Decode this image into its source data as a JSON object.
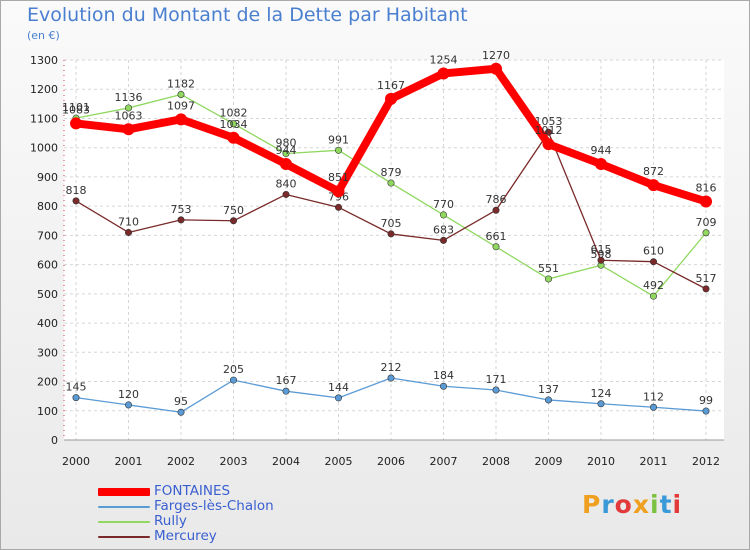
{
  "title": "Evolution du Montant de la Dette par Habitant",
  "unit_label": "(en €)",
  "logo": {
    "text": "Proxiti",
    "colors": [
      "#f0a020",
      "#3a9ad9",
      "#e23a3a",
      "#f0a020",
      "#7cc242",
      "#3a9ad9",
      "#e23a3a"
    ]
  },
  "chart_data": {
    "type": "line",
    "x": [
      "2000",
      "2001",
      "2002",
      "2003",
      "2004",
      "2005",
      "2006",
      "2007",
      "2008",
      "2009",
      "2010",
      "2011",
      "2012"
    ],
    "ylim": [
      0,
      1300
    ],
    "yticks": [
      0,
      100,
      200,
      300,
      400,
      500,
      600,
      700,
      800,
      900,
      1000,
      1100,
      1200,
      1300
    ],
    "grid": true,
    "legend_position": "bottom-left",
    "series": [
      {
        "name": "FONTAINES",
        "color": "#ff0000",
        "line_width": "thick",
        "values": [
          1083,
          1063,
          1097,
          1034,
          944,
          851,
          1167,
          1254,
          1270,
          1012,
          944,
          872,
          816
        ]
      },
      {
        "name": "Farges-lès-Chalon",
        "color": "#5b9bd5",
        "line_width": "thin",
        "values": [
          145,
          120,
          95,
          205,
          167,
          144,
          212,
          184,
          171,
          137,
          124,
          112,
          99
        ]
      },
      {
        "name": "Rully",
        "color": "#90d860",
        "line_width": "thin",
        "values": [
          1101,
          1136,
          1182,
          1082,
          980,
          991,
          879,
          770,
          661,
          551,
          598,
          492,
          709
        ]
      },
      {
        "name": "Mercurey",
        "color": "#7a2a2a",
        "line_width": "thin",
        "values": [
          818,
          710,
          753,
          750,
          840,
          796,
          705,
          683,
          786,
          1053,
          615,
          610,
          517
        ]
      }
    ]
  }
}
